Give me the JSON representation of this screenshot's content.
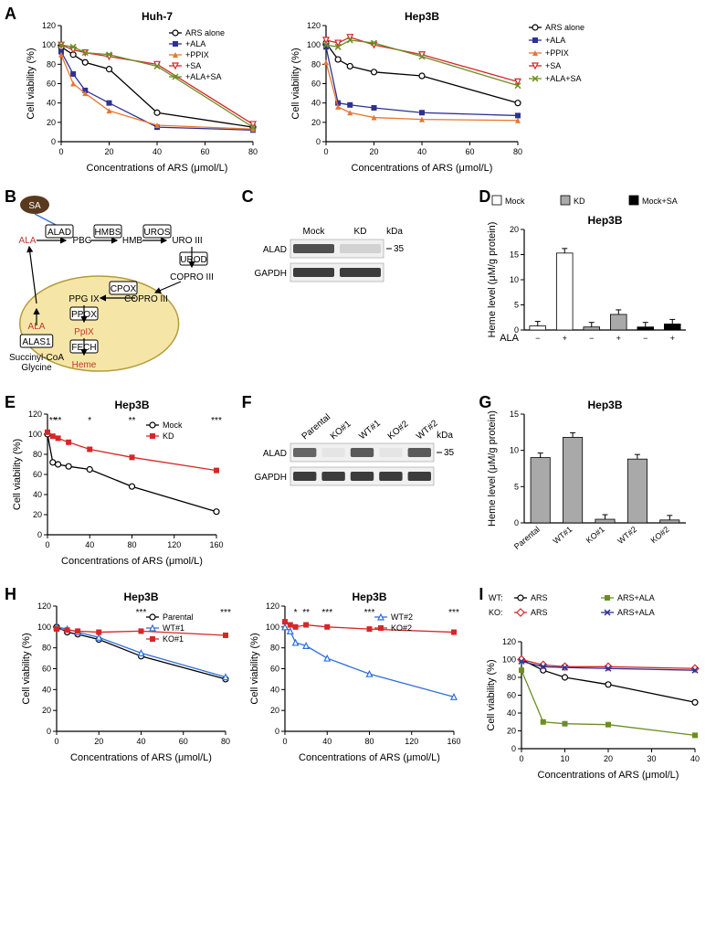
{
  "panelA": {
    "huh7": {
      "title": "Huh-7",
      "xlabel": "Concentrations of ARS (μmol/L)",
      "ylabel": "Cell viability (%)",
      "xlim": [
        0,
        80
      ],
      "xticks": [
        0,
        20,
        40,
        60,
        80
      ],
      "ylim": [
        0,
        120
      ],
      "yticks": [
        0,
        20,
        40,
        60,
        80,
        100,
        120
      ],
      "series": [
        {
          "name": "ARS alone",
          "color": "#000000",
          "marker": "open-circle",
          "x": [
            0,
            5,
            10,
            20,
            40,
            80
          ],
          "y": [
            98,
            90,
            82,
            75,
            30,
            15
          ]
        },
        {
          "name": "+ALA",
          "color": "#2e3192",
          "marker": "filled-square",
          "x": [
            0,
            5,
            10,
            20,
            40,
            80
          ],
          "y": [
            93,
            70,
            53,
            40,
            15,
            12
          ]
        },
        {
          "name": "+PPIX",
          "color": "#e8762d",
          "marker": "filled-triangle",
          "x": [
            0,
            5,
            10,
            20,
            40,
            80
          ],
          "y": [
            90,
            60,
            50,
            32,
            17,
            13
          ]
        },
        {
          "name": "+SA",
          "color": "#d62728",
          "marker": "open-down-triangle",
          "x": [
            0,
            5,
            10,
            20,
            40,
            80
          ],
          "y": [
            100,
            95,
            92,
            88,
            80,
            18
          ]
        },
        {
          "name": "+ALA+SA",
          "color": "#6b8e23",
          "marker": "x",
          "x": [
            0,
            5,
            10,
            20,
            40,
            80
          ],
          "y": [
            100,
            98,
            92,
            90,
            78,
            15
          ]
        }
      ]
    },
    "hep3b": {
      "title": "Hep3B",
      "xlabel": "Concentrations of ARS (μmol/L)",
      "ylabel": "Cell viability (%)",
      "xlim": [
        0,
        80
      ],
      "xticks": [
        0,
        20,
        40,
        60,
        80
      ],
      "ylim": [
        0,
        120
      ],
      "yticks": [
        0,
        20,
        40,
        60,
        80,
        100,
        120
      ],
      "series": [
        {
          "name": "ARS alone",
          "color": "#000000",
          "marker": "open-circle",
          "x": [
            0,
            5,
            10,
            20,
            40,
            80
          ],
          "y": [
            102,
            85,
            78,
            72,
            68,
            40
          ]
        },
        {
          "name": "+ALA",
          "color": "#2e3192",
          "marker": "filled-square",
          "x": [
            0,
            5,
            10,
            20,
            40,
            80
          ],
          "y": [
            98,
            40,
            38,
            35,
            30,
            27
          ]
        },
        {
          "name": "+PPIX",
          "color": "#e8762d",
          "marker": "filled-triangle",
          "x": [
            0,
            5,
            10,
            20,
            40,
            80
          ],
          "y": [
            82,
            36,
            30,
            25,
            23,
            22
          ]
        },
        {
          "name": "+SA",
          "color": "#d62728",
          "marker": "open-down-triangle",
          "x": [
            0,
            5,
            10,
            20,
            40,
            80
          ],
          "y": [
            105,
            102,
            108,
            100,
            90,
            62
          ]
        },
        {
          "name": "+ALA+SA",
          "color": "#6b8e23",
          "marker": "x",
          "x": [
            0,
            5,
            10,
            20,
            40,
            80
          ],
          "y": [
            100,
            98,
            105,
            102,
            88,
            58
          ]
        }
      ]
    }
  },
  "panelB": {
    "sa": "SA",
    "molecules": [
      "ALA",
      "PBG",
      "HMB",
      "URO III",
      "COPRO III",
      "COPRO III",
      "PPG IX",
      "PpIX",
      "Heme",
      "ALA",
      "Succinyl-CoA\nGlycine"
    ],
    "enzymes": [
      "ALAD",
      "HMBS",
      "UROS",
      "UROD",
      "CPOX",
      "PPOX",
      "FECH",
      "ALAS1"
    ]
  },
  "panelC": {
    "cols": [
      "Mock",
      "KD"
    ],
    "rows": [
      "ALAD",
      "GAPDH"
    ],
    "kda": "kDa",
    "mark": "35"
  },
  "panelD": {
    "title": "Hep3B",
    "ylabel": "Heme level (μM/g protein)",
    "ylim": [
      0,
      20
    ],
    "yticks": [
      0,
      5,
      10,
      15,
      20
    ],
    "groups": [
      "Mock",
      "KD",
      "Mock+SA"
    ],
    "group_colors": [
      "#ffffff",
      "#a9a9a9",
      "#000000"
    ],
    "xlabel": "ALA",
    "xcats": [
      "−",
      "+",
      "−",
      "+",
      "−",
      "+"
    ],
    "values": [
      0.8,
      15.3,
      0.6,
      3.1,
      0.6,
      1.2
    ],
    "bar_fill": [
      "#ffffff",
      "#ffffff",
      "#a9a9a9",
      "#a9a9a9",
      "#000000",
      "#000000"
    ]
  },
  "panelE": {
    "title": "Hep3B",
    "xlabel": "Concentrations of ARS (μmol/L)",
    "ylabel": "Cell viability (%)",
    "xlim": [
      0,
      160
    ],
    "xticks": [
      0,
      40,
      80,
      120,
      160
    ],
    "ylim": [
      0,
      120
    ],
    "yticks": [
      0,
      20,
      40,
      60,
      80,
      100,
      120
    ],
    "series": [
      {
        "name": "Mock",
        "color": "#000000",
        "marker": "open-circle",
        "x": [
          0,
          5,
          10,
          20,
          40,
          80,
          160
        ],
        "y": [
          100,
          72,
          70,
          68,
          65,
          48,
          23
        ]
      },
      {
        "name": "KD",
        "color": "#d62728",
        "marker": "filled-square",
        "x": [
          0,
          5,
          10,
          20,
          40,
          80,
          160
        ],
        "y": [
          102,
          98,
          96,
          92,
          85,
          77,
          64
        ]
      }
    ],
    "sig": [
      {
        "x": 5,
        "label": "**"
      },
      {
        "x": 10,
        "label": "**"
      },
      {
        "x": 40,
        "label": "*"
      },
      {
        "x": 80,
        "label": "**"
      },
      {
        "x": 160,
        "label": "***"
      }
    ]
  },
  "panelF": {
    "cols": [
      "Parental",
      "KO#1",
      "WT#1",
      "KO#2",
      "WT#2"
    ],
    "rows": [
      "ALAD",
      "GAPDH"
    ],
    "kda": "kDa",
    "mark": "35"
  },
  "panelG": {
    "title": "Hep3B",
    "ylabel": "Heme level (μM/g protein)",
    "ylim": [
      0,
      15
    ],
    "yticks": [
      0,
      5,
      10,
      15
    ],
    "xcats": [
      "Parental",
      "WT#1",
      "KO#1",
      "WT#2",
      "KO#2"
    ],
    "values": [
      9.0,
      11.8,
      0.5,
      8.8,
      0.4
    ],
    "bar_fill": "#a9a9a9"
  },
  "panelH": {
    "left": {
      "title": "Hep3B",
      "xlabel": "Concentrations of ARS (μmol/L)",
      "ylabel": "Cell viability (%)",
      "xlim": [
        0,
        80
      ],
      "xticks": [
        0,
        20,
        40,
        60,
        80
      ],
      "ylim": [
        0,
        120
      ],
      "yticks": [
        0,
        20,
        40,
        60,
        80,
        100,
        120
      ],
      "series": [
        {
          "name": "Parental",
          "color": "#000000",
          "marker": "open-circle",
          "x": [
            0,
            5,
            10,
            20,
            40,
            80
          ],
          "y": [
            100,
            95,
            93,
            88,
            72,
            50
          ]
        },
        {
          "name": "WT#1",
          "color": "#2e6fdb",
          "marker": "open-triangle",
          "x": [
            0,
            5,
            10,
            20,
            40,
            80
          ],
          "y": [
            100,
            98,
            95,
            90,
            75,
            52
          ]
        },
        {
          "name": "KO#1",
          "color": "#d62728",
          "marker": "filled-square",
          "x": [
            0,
            5,
            10,
            20,
            40,
            80
          ],
          "y": [
            98,
            97,
            96,
            95,
            96,
            92
          ]
        }
      ],
      "sig": [
        {
          "x": 40,
          "label": "***"
        },
        {
          "x": 80,
          "label": "***"
        }
      ]
    },
    "right": {
      "title": "Hep3B",
      "xlabel": "Concentrations of ARS (μmol/L)",
      "ylabel": "Cell viability (%)",
      "xlim": [
        0,
        160
      ],
      "xticks": [
        0,
        40,
        80,
        120,
        160
      ],
      "ylim": [
        0,
        120
      ],
      "yticks": [
        0,
        20,
        40,
        60,
        80,
        100,
        120
      ],
      "series": [
        {
          "name": "WT#2",
          "color": "#2e6fdb",
          "marker": "open-triangle",
          "x": [
            0,
            5,
            10,
            20,
            40,
            80,
            160
          ],
          "y": [
            100,
            96,
            85,
            82,
            70,
            55,
            33
          ]
        },
        {
          "name": "KO#2",
          "color": "#d62728",
          "marker": "filled-square",
          "x": [
            0,
            5,
            10,
            20,
            40,
            80,
            160
          ],
          "y": [
            105,
            102,
            100,
            102,
            100,
            98,
            95
          ]
        }
      ],
      "sig": [
        {
          "x": 10,
          "label": "*"
        },
        {
          "x": 20,
          "label": "**"
        },
        {
          "x": 40,
          "label": "***"
        },
        {
          "x": 80,
          "label": "***"
        },
        {
          "x": 160,
          "label": "***"
        }
      ]
    }
  },
  "panelI": {
    "xlabel": "Concentrations of ARS (μmol/L)",
    "ylabel": "Cell viability (%)",
    "xlim": [
      0,
      40
    ],
    "xticks": [
      0,
      10,
      20,
      30,
      40
    ],
    "ylim": [
      0,
      120
    ],
    "yticks": [
      0,
      20,
      40,
      60,
      80,
      100,
      120
    ],
    "legend_groups": [
      "WT:",
      "KO:"
    ],
    "series": [
      {
        "name": "ARS",
        "group": "WT",
        "color": "#000000",
        "marker": "open-circle",
        "x": [
          0,
          5,
          10,
          20,
          40
        ],
        "y": [
          100,
          88,
          80,
          72,
          52
        ]
      },
      {
        "name": "ARS+ALA",
        "group": "WT",
        "color": "#6b8e23",
        "marker": "filled-square",
        "x": [
          0,
          5,
          10,
          20,
          40
        ],
        "y": [
          88,
          30,
          28,
          27,
          15
        ]
      },
      {
        "name": "ARS",
        "group": "KO",
        "color": "#d62728",
        "marker": "open-diamond",
        "x": [
          0,
          5,
          10,
          20,
          40
        ],
        "y": [
          100,
          94,
          92,
          92,
          90
        ]
      },
      {
        "name": "ARS+ALA",
        "group": "KO",
        "color": "#2e3192",
        "marker": "x",
        "x": [
          0,
          5,
          10,
          20,
          40
        ],
        "y": [
          98,
          92,
          91,
          90,
          88
        ]
      }
    ]
  }
}
